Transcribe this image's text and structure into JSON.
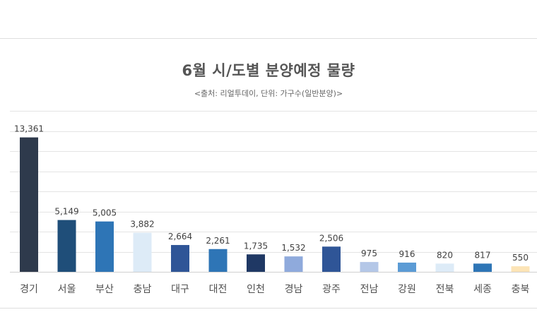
{
  "chart_data": {
    "type": "bar",
    "title": "6월 시/도별 분양예정 물량",
    "subtitle": "<출처: 리얼투데이, 단위: 가구수(일반분양)>",
    "categories": [
      "경기",
      "서울",
      "부산",
      "충남",
      "대구",
      "대전",
      "인천",
      "경남",
      "광주",
      "전남",
      "강원",
      "전북",
      "세종",
      "충북"
    ],
    "values": [
      13361,
      5149,
      5005,
      3882,
      2664,
      2261,
      1735,
      1532,
      2506,
      975,
      916,
      820,
      817,
      550
    ],
    "value_labels": [
      "13,361",
      "5,149",
      "5,005",
      "3,882",
      "2,664",
      "2,261",
      "1,735",
      "1,532",
      "2,506",
      "975",
      "916",
      "820",
      "817",
      "550"
    ],
    "colors": [
      "#2e3a4c",
      "#1f4e79",
      "#2e75b6",
      "#ddebf7",
      "#2f5597",
      "#2e75b6",
      "#1f3864",
      "#8faadc",
      "#2f5597",
      "#b4c7e7",
      "#5b9bd5",
      "#ddebf7",
      "#2e75b6",
      "#fce4b6"
    ],
    "ylim": [
      0,
      16000
    ],
    "grid": true,
    "legend": "none",
    "xlabel": "",
    "ylabel": ""
  }
}
